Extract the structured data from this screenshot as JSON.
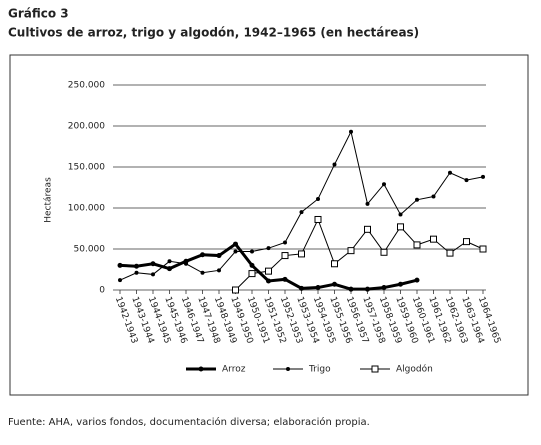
{
  "chart_data": {
    "type": "line",
    "title": "Gráfico 3",
    "subtitle": "Cultivos de arroz, trigo y algodón, 1942–1965 (en hectáreas)",
    "y_label": "Hectáreas",
    "source": "Fuente: AHA, varios fondos, documentación diversa; elaboración propia.",
    "categories": [
      "1942-1943",
      "1943-1944",
      "1944-1945",
      "1945-1946",
      "1946-1947",
      "1947-1948",
      "1948-1949",
      "1949-1950",
      "1950-1951",
      "1951-1952",
      "1952-1953",
      "1953-1954",
      "1954-1955",
      "1955-1956",
      "1956-1957",
      "1957-1958",
      "1958-1959",
      "1959-1960",
      "1960-1961",
      "1961-1962",
      "1962-1963",
      "1963-1964",
      "1964-1965"
    ],
    "series": [
      {
        "name": "Arroz",
        "color": "#000000",
        "marker": "dot",
        "width": 3,
        "values": [
          30000,
          29000,
          32000,
          26000,
          35000,
          43000,
          42000,
          56000,
          30000,
          11000,
          13000,
          2000,
          3000,
          7000,
          1000,
          1000,
          3000,
          7000,
          12000,
          null,
          null,
          null,
          null
        ]
      },
      {
        "name": "Trigo",
        "color": "#000000",
        "marker": "circle",
        "width": 1,
        "values": [
          12000,
          21000,
          19000,
          35000,
          32000,
          21000,
          24000,
          47000,
          47000,
          51000,
          58000,
          95000,
          111000,
          153000,
          193000,
          105000,
          129000,
          92000,
          110000,
          114000,
          143000,
          134000,
          138000
        ]
      },
      {
        "name": "Algodón",
        "color": "#000000",
        "marker": "square",
        "width": 1,
        "values": [
          null,
          null,
          null,
          null,
          null,
          null,
          null,
          0,
          20000,
          23000,
          42000,
          44000,
          86000,
          32000,
          48000,
          74000,
          46000,
          77000,
          55000,
          62000,
          45000,
          59000,
          50000
        ]
      }
    ],
    "ylim": [
      0,
      250000
    ],
    "yticks": [
      0,
      {
        "value": 50000,
        "label": "50.000"
      },
      {
        "value": 100000,
        "label": "100.000"
      },
      {
        "value": 150000,
        "label": "150.000"
      },
      {
        "value": 200000,
        "label": "200.000"
      },
      {
        "value": 250000,
        "label": "250.000"
      }
    ],
    "grid": true
  }
}
